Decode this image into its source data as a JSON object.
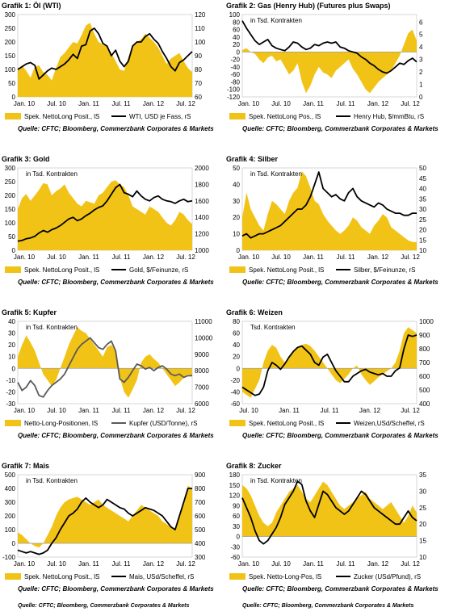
{
  "sources": {
    "left": "Quelle: CFTC; Bloomberg, Commerzbank Corporates & Markets",
    "right": "Quelle: CFTC; Bloomberg, Commerzbank Corporates & Markets"
  },
  "colors": {
    "area": "#f2c317",
    "line": "#000000",
    "line_grey": "#5a5a5a",
    "zero": "#9a9a9a"
  },
  "chart_data": [
    {
      "type": "area",
      "title": "Grafik 1: Öl (WTI)",
      "note": "",
      "x_labels": [
        "Jan. 10",
        "Jul. 10",
        "Jan. 11",
        "Jul. 11",
        "Jan. 12",
        "Jul. 12"
      ],
      "left_ticks": [
        0,
        50,
        100,
        150,
        200,
        250,
        300
      ],
      "ylim_left": [
        0,
        300
      ],
      "right_ticks": [
        60,
        70,
        80,
        90,
        100,
        110,
        120
      ],
      "ylim_right": [
        60,
        120
      ],
      "legend_area": "Spek. NettoLong Posit., lS",
      "legend_line": "WTI, USD je Fass, rS",
      "area_values": [
        100,
        115,
        95,
        70,
        110,
        115,
        90,
        80,
        60,
        105,
        145,
        160,
        180,
        200,
        195,
        225,
        260,
        270,
        230,
        200,
        190,
        185,
        160,
        130,
        100,
        95,
        145,
        190,
        200,
        210,
        230,
        215,
        200,
        180,
        150,
        120,
        140,
        150,
        160,
        130,
        105,
        90
      ],
      "line_values": [
        80,
        82,
        84,
        85,
        83,
        73,
        76,
        79,
        81,
        80,
        82,
        84,
        87,
        91,
        88,
        97,
        98,
        108,
        110,
        106,
        99,
        97,
        90,
        94,
        86,
        82,
        86,
        97,
        100,
        100,
        104,
        106,
        102,
        99,
        93,
        88,
        82,
        79,
        85,
        87,
        90,
        93
      ]
    },
    {
      "type": "area",
      "title": "Grafik 2: Gas (Henry Hub) (Futures plus Swaps)",
      "note": "in Tsd. Kontrakten",
      "x_labels": [
        "Jan. 10",
        "Jul. 10",
        "Jan. 11",
        "Jul. 11",
        "Jan. 12",
        "Jul. 12"
      ],
      "left_ticks": [
        -120,
        -100,
        -80,
        -60,
        -40,
        -20,
        0,
        20,
        40,
        60,
        80,
        100
      ],
      "ylim_left": [
        -120,
        100
      ],
      "right_ticks": [
        0,
        1,
        2,
        3,
        4,
        5,
        6
      ],
      "ylim_right": [
        0,
        6.6
      ],
      "legend_area": "Spek. NettoLong Pos., lS",
      "legend_line": "Henry Hub, $/mmBtu, rS",
      "area_values": [
        5,
        10,
        0,
        -5,
        -20,
        -30,
        -15,
        -10,
        -25,
        -20,
        -40,
        -60,
        -50,
        -30,
        -80,
        -110,
        -90,
        -60,
        -40,
        -55,
        -60,
        -70,
        -50,
        -40,
        -30,
        -20,
        -45,
        -60,
        -80,
        -100,
        -110,
        -95,
        -80,
        -70,
        -60,
        -50,
        -30,
        -10,
        20,
        50,
        60,
        30
      ],
      "line_values": [
        6.1,
        5.5,
        5.0,
        4.5,
        4.2,
        4.4,
        4.6,
        4.1,
        3.9,
        3.8,
        3.7,
        4.0,
        4.4,
        4.3,
        4.0,
        3.8,
        3.9,
        4.2,
        4.1,
        4.3,
        4.4,
        4.3,
        4.4,
        4.0,
        3.9,
        3.7,
        3.6,
        3.5,
        3.2,
        3.0,
        2.7,
        2.5,
        2.2,
        2.0,
        1.9,
        2.1,
        2.4,
        2.7,
        2.6,
        2.9,
        3.1,
        2.8
      ]
    },
    {
      "type": "area",
      "title": "Grafik 3: Gold",
      "note": "in Tsd. Kontrakten",
      "x_labels": [
        "Jan. 10",
        "Jul. 10",
        "Jan. 11",
        "Jul. 11",
        "Jan. 12",
        "Jul. 12"
      ],
      "left_ticks": [
        0,
        50,
        100,
        150,
        200,
        250,
        300
      ],
      "ylim_left": [
        0,
        300
      ],
      "right_ticks": [
        1000,
        1200,
        1400,
        1600,
        1800,
        2000
      ],
      "ylim_right": [
        1000,
        2000
      ],
      "legend_area": "Spek. NettoLong Posit., lS",
      "legend_line": "Gold, $/Feinunze, rS",
      "area_values": [
        150,
        190,
        205,
        180,
        200,
        220,
        245,
        240,
        200,
        215,
        225,
        240,
        210,
        190,
        170,
        160,
        180,
        175,
        170,
        200,
        210,
        230,
        250,
        255,
        240,
        230,
        200,
        160,
        150,
        140,
        130,
        160,
        150,
        140,
        120,
        100,
        90,
        110,
        140,
        130,
        110,
        95
      ],
      "line_values": [
        1110,
        1120,
        1140,
        1150,
        1170,
        1210,
        1240,
        1220,
        1250,
        1270,
        1300,
        1340,
        1380,
        1400,
        1360,
        1380,
        1420,
        1450,
        1490,
        1520,
        1540,
        1600,
        1680,
        1760,
        1800,
        1700,
        1680,
        1650,
        1720,
        1660,
        1620,
        1600,
        1640,
        1660,
        1620,
        1600,
        1590,
        1570,
        1600,
        1620,
        1590,
        1600
      ]
    },
    {
      "type": "area",
      "title": "Grafik 4: Silber",
      "note": "in Tsd. Kontrakten",
      "x_labels": [
        "Jan. 10",
        "Jul. 10",
        "Jan. 11",
        "Jul. 11",
        "Jan. 12",
        "Jul. 12"
      ],
      "left_ticks": [
        0,
        10,
        20,
        30,
        40,
        50
      ],
      "ylim_left": [
        0,
        50
      ],
      "right_ticks": [
        10,
        15,
        20,
        25,
        30,
        35,
        40,
        45,
        50
      ],
      "ylim_right": [
        10,
        50
      ],
      "legend_area": "Spek. NettoLong Posit., lS",
      "legend_line": "Silber, $/Feinunze, rS",
      "area_values": [
        20,
        35,
        25,
        20,
        15,
        12,
        22,
        30,
        28,
        25,
        22,
        30,
        35,
        38,
        48,
        45,
        38,
        30,
        28,
        22,
        18,
        15,
        12,
        10,
        12,
        15,
        20,
        18,
        14,
        12,
        10,
        15,
        18,
        22,
        20,
        14,
        12,
        10,
        8,
        6,
        5,
        5
      ],
      "line_values": [
        17,
        18,
        16,
        17,
        18,
        18,
        19,
        20,
        21,
        22,
        24,
        26,
        28,
        30,
        30,
        32,
        36,
        42,
        48,
        40,
        38,
        36,
        37,
        35,
        34,
        38,
        40,
        36,
        34,
        33,
        32,
        31,
        33,
        32,
        30,
        29,
        28,
        28,
        27,
        27,
        28,
        28
      ]
    },
    {
      "type": "area",
      "title": "Grafik 5: Kupfer",
      "note": "in Tsd. Kontrakten",
      "x_labels": [
        "Jan. 10",
        "Jul. 10",
        "Jan. 11",
        "Jul. 11",
        "Jan. 12",
        "Jul. 12"
      ],
      "left_ticks": [
        -30,
        -20,
        -10,
        0,
        10,
        20,
        30,
        40
      ],
      "ylim_left": [
        -30,
        40
      ],
      "right_ticks": [
        6000,
        7000,
        8000,
        9000,
        10000,
        11000
      ],
      "ylim_right": [
        6000,
        11000
      ],
      "legend_area": "Netto-Long-Positionen, lS",
      "legend_line": "Kupfer (USD/Tonne), rS",
      "area_values": [
        10,
        20,
        28,
        22,
        15,
        5,
        -5,
        -10,
        -15,
        -10,
        0,
        10,
        20,
        28,
        35,
        32,
        30,
        25,
        20,
        15,
        10,
        18,
        20,
        15,
        -8,
        -20,
        -25,
        -18,
        -10,
        5,
        10,
        12,
        8,
        5,
        0,
        -5,
        -10,
        -15,
        -12,
        -8,
        -5,
        -6
      ],
      "line_values": [
        7300,
        6800,
        7000,
        7400,
        7100,
        6500,
        6400,
        6800,
        7100,
        7300,
        7500,
        7800,
        8300,
        8800,
        9300,
        9600,
        9800,
        10000,
        9700,
        9400,
        9300,
        9600,
        9800,
        9200,
        7500,
        7300,
        7600,
        8000,
        8400,
        8300,
        8100,
        8200,
        8000,
        8200,
        8300,
        8100,
        7800,
        7700,
        7800,
        7600,
        7700,
        7700
      ]
    },
    {
      "type": "area",
      "title": "Grafik 6: Weizen",
      "note": "Tsd. Kontrakten",
      "x_labels": [
        "Jul. 10",
        "Jan. 11",
        "Jul. 11",
        "Jan. 12",
        "Jul. 12"
      ],
      "left_ticks": [
        -60,
        -40,
        -20,
        0,
        20,
        40,
        60,
        80
      ],
      "ylim_left": [
        -60,
        80
      ],
      "right_ticks": [
        400,
        500,
        600,
        700,
        800,
        900,
        1000
      ],
      "ylim_right": [
        400,
        1000
      ],
      "legend_area": "Spek. NettoLong Posit., lS",
      "legend_line": "Weizen,USd/Scheffel, rS",
      "area_values": [
        -40,
        -45,
        -50,
        -35,
        -20,
        10,
        30,
        40,
        35,
        20,
        10,
        20,
        30,
        35,
        40,
        42,
        38,
        30,
        20,
        10,
        0,
        -10,
        -20,
        -25,
        -18,
        -10,
        0,
        5,
        -10,
        -20,
        -28,
        -22,
        -15,
        -10,
        -5,
        0,
        10,
        30,
        60,
        70,
        65,
        60
      ],
      "line_values": [
        520,
        500,
        480,
        460,
        470,
        520,
        640,
        700,
        680,
        650,
        690,
        740,
        780,
        810,
        820,
        790,
        760,
        700,
        680,
        740,
        760,
        700,
        640,
        600,
        560,
        560,
        600,
        620,
        640,
        650,
        630,
        620,
        610,
        620,
        600,
        600,
        640,
        660,
        800,
        900,
        890,
        900
      ]
    },
    {
      "type": "area",
      "title": "Grafik 7: Mais",
      "note": "in Tsd. Kontrakten",
      "x_labels": [
        "Jan. 10",
        "Jul. 10",
        "Jan. 11",
        "Jul. 11",
        "Jan. 12",
        "Jul. 12"
      ],
      "left_ticks": [
        -100,
        0,
        100,
        200,
        300,
        400,
        500
      ],
      "ylim_left": [
        -100,
        500
      ],
      "right_ticks": [
        300,
        400,
        500,
        600,
        700,
        800,
        900
      ],
      "ylim_right": [
        300,
        900
      ],
      "legend_area": "Spek. NettoLong Posit., lS",
      "legend_line": "Mais, USd/Scheffel, rS",
      "area_values": [
        80,
        60,
        30,
        0,
        -20,
        -30,
        0,
        60,
        120,
        200,
        260,
        300,
        320,
        330,
        340,
        320,
        300,
        280,
        300,
        320,
        280,
        260,
        240,
        220,
        200,
        180,
        160,
        200,
        240,
        280,
        260,
        240,
        220,
        200,
        160,
        140,
        120,
        100,
        200,
        300,
        420,
        400
      ],
      "line_values": [
        350,
        340,
        330,
        340,
        330,
        320,
        330,
        350,
        400,
        440,
        500,
        550,
        600,
        620,
        650,
        700,
        730,
        700,
        680,
        660,
        680,
        720,
        700,
        680,
        660,
        650,
        620,
        600,
        620,
        640,
        660,
        650,
        640,
        620,
        600,
        560,
        520,
        500,
        600,
        700,
        800,
        800
      ]
    },
    {
      "type": "area",
      "title": "Grafik 8: Zucker",
      "note": "in Tsd. Kontrakten",
      "x_labels": [
        "Jan. 10",
        "Jul. 10",
        "Jan. 11",
        "Jul. 11",
        "Jan. 12",
        "Jul. 12"
      ],
      "left_ticks": [
        -60,
        -30,
        0,
        30,
        60,
        90,
        120,
        150,
        180
      ],
      "ylim_left": [
        -60,
        180
      ],
      "right_ticks": [
        10,
        15,
        20,
        25,
        30,
        35
      ],
      "ylim_right": [
        10,
        35
      ],
      "legend_area": "Spek. Netto-Long-Pos, lS",
      "legend_line": "Zucker (USd/Pfund), rS",
      "area_values": [
        150,
        140,
        120,
        90,
        60,
        40,
        30,
        40,
        70,
        90,
        110,
        130,
        140,
        150,
        130,
        110,
        100,
        120,
        140,
        160,
        150,
        130,
        110,
        90,
        80,
        90,
        100,
        110,
        120,
        130,
        110,
        100,
        90,
        80,
        90,
        100,
        80,
        60,
        40,
        60,
        90,
        70
      ],
      "line_values": [
        28,
        25,
        22,
        18,
        15,
        14,
        15,
        17,
        19,
        22,
        26,
        28,
        30,
        33,
        32,
        27,
        24,
        22,
        26,
        30,
        29,
        27,
        25,
        24,
        23,
        24,
        26,
        28,
        30,
        29,
        27,
        25,
        24,
        23,
        22,
        21,
        20,
        20,
        22,
        24,
        22,
        21
      ]
    }
  ]
}
